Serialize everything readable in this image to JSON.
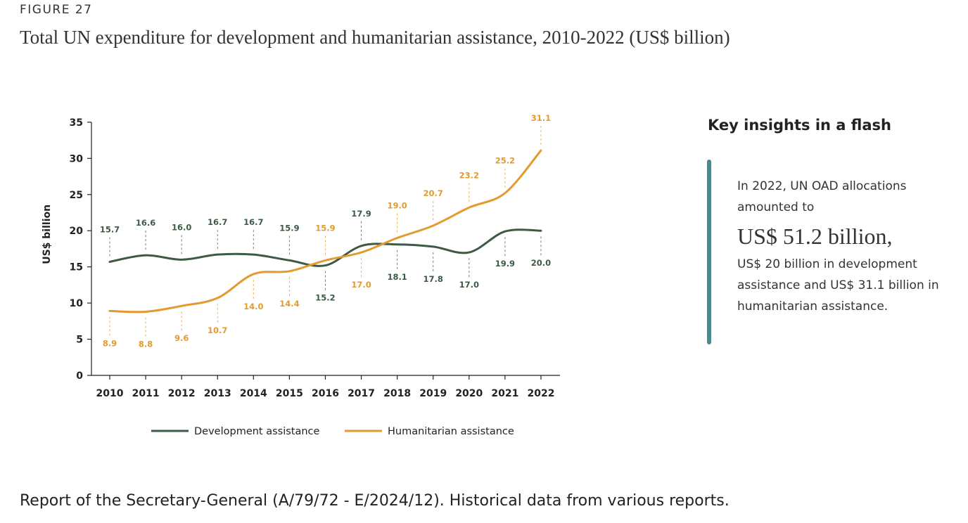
{
  "figure": {
    "label": "FIGURE 27",
    "title": "Total UN expenditure for development and humanitarian assistance, 2010-2022 (US$ billion)"
  },
  "chart_data": {
    "type": "line",
    "x": [
      "2010",
      "2011",
      "2012",
      "2013",
      "2014",
      "2015",
      "2016",
      "2017",
      "2018",
      "2019",
      "2020",
      "2021",
      "2022"
    ],
    "ylabel": "US$ billion",
    "ylim": [
      0,
      35
    ],
    "yticks": [
      0,
      5,
      10,
      15,
      20,
      25,
      30,
      35
    ],
    "grid": false,
    "legend_position": "bottom",
    "series": [
      {
        "name": "Development assistance",
        "color": "#3d5a45",
        "values": [
          15.7,
          16.6,
          16.0,
          16.7,
          16.7,
          15.9,
          15.2,
          17.9,
          18.1,
          17.8,
          17.0,
          19.9,
          20.0
        ],
        "labels": [
          "15.7",
          "16.6",
          "16.0",
          "16.7",
          "16.7",
          "15.9",
          "15.2",
          "17.9",
          "18.1",
          "17.8",
          "17.0",
          "19.9",
          "20.0"
        ]
      },
      {
        "name": "Humanitarian assistance",
        "color": "#e39a2e",
        "values": [
          8.9,
          8.8,
          9.6,
          10.7,
          14.0,
          14.4,
          15.9,
          17.0,
          19.0,
          20.7,
          23.2,
          25.2,
          31.1
        ],
        "labels": [
          "8.9",
          "8.8",
          "9.6",
          "10.7",
          "14.0",
          "14.4",
          "15.9",
          "17.0",
          "19.0",
          "20.7",
          "23.2",
          "25.2",
          "31.1"
        ]
      }
    ]
  },
  "insights": {
    "title": "Key insights in a flash",
    "lead": "In 2022, UN OAD allocations amounted to",
    "amount": "US$ 51.2 billion,",
    "tail": "US$ 20 billion in development assistance and US$ 31.1 billion in humanitarian assistance.",
    "accent_color": "#4a8a8c"
  },
  "source": "Report of the Secretary-General (A/79/72 - E/2024/12). Historical data from various reports."
}
